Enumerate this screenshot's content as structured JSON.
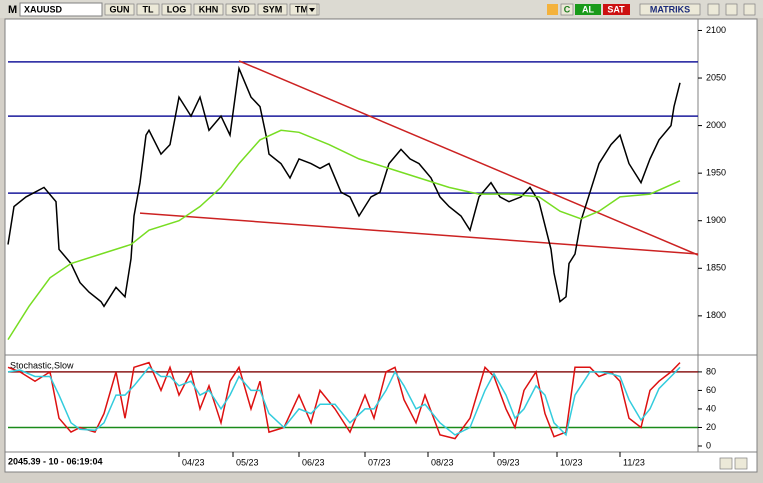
{
  "toolbar": {
    "logo": "M",
    "symbol": "XAUUSD",
    "buttons": [
      "GUN",
      "TL",
      "LOG",
      "KHN",
      "SVD",
      "SYM",
      "TMP"
    ],
    "c": "C",
    "buy": "AL",
    "sell": "SAT",
    "brand": "MATRIKS"
  },
  "status": "2045.39 - 10 - 06:19:04",
  "chart_data": [
    {
      "type": "line",
      "xlim": [
        0,
        230
      ],
      "ylim": [
        1762,
        2111
      ],
      "yticks": [
        1800,
        1850,
        1900,
        1950,
        2000,
        2050,
        2100
      ],
      "series": [
        {
          "color": "#000000",
          "x": [
            0,
            2,
            6,
            9,
            12,
            16,
            17,
            21,
            24,
            27,
            31,
            32,
            36,
            39,
            41,
            42,
            44,
            46,
            47,
            51,
            54,
            57,
            61,
            64,
            67,
            71,
            74,
            77,
            81,
            84,
            86,
            87,
            91,
            94,
            97,
            101,
            104,
            107,
            111,
            114,
            117,
            121,
            124,
            127,
            131,
            134,
            137,
            141,
            144,
            147,
            151,
            154,
            157,
            161,
            164,
            167,
            171,
            174,
            177,
            181,
            182,
            184,
            186,
            187,
            189,
            191,
            194,
            197,
            201,
            204,
            207,
            211,
            214,
            217,
            221,
            222,
            224
          ],
          "values": [
            1875,
            1915,
            1925,
            1930,
            1935,
            1920,
            1870,
            1855,
            1835,
            1825,
            1815,
            1810,
            1830,
            1820,
            1860,
            1905,
            1940,
            1990,
            1995,
            1970,
            1980,
            2030,
            2010,
            2030,
            1995,
            2010,
            1990,
            2060,
            2030,
            2020,
            1990,
            1970,
            1960,
            1945,
            1965,
            1960,
            1955,
            1960,
            1930,
            1925,
            1905,
            1925,
            1930,
            1960,
            1975,
            1965,
            1960,
            1945,
            1925,
            1915,
            1905,
            1890,
            1925,
            1940,
            1925,
            1920,
            1925,
            1935,
            1920,
            1870,
            1845,
            1815,
            1820,
            1855,
            1865,
            1900,
            1930,
            1960,
            1980,
            1990,
            1960,
            1940,
            1965,
            1985,
            2000,
            2020,
            2045
          ]
        },
        {
          "color": "#77dd22",
          "x": [
            0,
            7,
            14,
            21,
            31,
            41,
            47,
            57,
            64,
            71,
            77,
            84,
            91,
            97,
            107,
            117,
            127,
            137,
            147,
            157,
            167,
            177,
            184,
            191,
            197,
            204,
            214,
            224
          ],
          "values": [
            1775,
            1810,
            1840,
            1855,
            1865,
            1875,
            1890,
            1900,
            1915,
            1935,
            1960,
            1985,
            1995,
            1993,
            1980,
            1965,
            1955,
            1945,
            1935,
            1928,
            1928,
            1925,
            1910,
            1902,
            1910,
            1925,
            1928,
            1942
          ]
        }
      ],
      "hlines": [
        {
          "value": 2067,
          "color": "#1a1a9c"
        },
        {
          "value": 2010,
          "color": "#1a1a9c"
        },
        {
          "value": 1929,
          "color": "#1a1a9c"
        }
      ],
      "trendlines": [
        {
          "color": "#cc2222",
          "x": [
            77,
            230
          ],
          "values": [
            2068,
            1864
          ]
        },
        {
          "color": "#cc2222",
          "x": [
            44,
            230
          ],
          "values": [
            1908,
            1865
          ]
        }
      ]
    },
    {
      "type": "line",
      "title": "Stochastic,Slow",
      "xlim": [
        0,
        230
      ],
      "ylim": [
        0,
        95
      ],
      "xticks": [
        {
          "value": 57,
          "label": "04/23"
        },
        {
          "value": 75,
          "label": "05/23"
        },
        {
          "value": 97,
          "label": "06/23"
        },
        {
          "value": 119,
          "label": "07/23"
        },
        {
          "value": 140,
          "label": "08/23"
        },
        {
          "value": 162,
          "label": "09/23"
        },
        {
          "value": 183,
          "label": "10/23"
        },
        {
          "value": 204,
          "label": "11/23"
        }
      ],
      "yticks": [
        0,
        20,
        40,
        60,
        80
      ],
      "series": [
        {
          "color": "#dd1111",
          "x": [
            0,
            4,
            9,
            14,
            17,
            21,
            24,
            29,
            32,
            36,
            39,
            42,
            47,
            51,
            54,
            57,
            61,
            64,
            67,
            71,
            74,
            77,
            81,
            84,
            87,
            92,
            97,
            101,
            104,
            109,
            114,
            119,
            122,
            126,
            129,
            132,
            136,
            139,
            144,
            149,
            154,
            159,
            162,
            166,
            169,
            172,
            176,
            179,
            182,
            186,
            189,
            194,
            197,
            201,
            204,
            207,
            211,
            214,
            217,
            221,
            224
          ],
          "values": [
            85,
            80,
            70,
            80,
            30,
            15,
            20,
            15,
            35,
            80,
            30,
            85,
            90,
            60,
            85,
            55,
            80,
            40,
            65,
            25,
            70,
            85,
            40,
            70,
            15,
            20,
            55,
            25,
            60,
            40,
            15,
            55,
            30,
            80,
            85,
            50,
            25,
            55,
            12,
            8,
            30,
            85,
            75,
            40,
            20,
            60,
            80,
            35,
            10,
            15,
            85,
            85,
            75,
            80,
            70,
            30,
            20,
            60,
            70,
            80,
            90
          ]
        },
        {
          "color": "#33ccdd",
          "x": [
            0,
            4,
            9,
            14,
            17,
            21,
            24,
            29,
            32,
            36,
            39,
            42,
            47,
            51,
            54,
            57,
            61,
            64,
            67,
            71,
            74,
            77,
            81,
            84,
            87,
            92,
            97,
            101,
            104,
            109,
            114,
            119,
            122,
            126,
            129,
            132,
            136,
            139,
            144,
            149,
            154,
            159,
            162,
            166,
            169,
            172,
            176,
            179,
            182,
            186,
            189,
            194,
            197,
            201,
            204,
            207,
            211,
            214,
            217,
            221,
            224
          ],
          "values": [
            80,
            82,
            75,
            75,
            55,
            25,
            18,
            17,
            25,
            55,
            55,
            65,
            85,
            75,
            75,
            65,
            70,
            55,
            60,
            40,
            55,
            75,
            60,
            60,
            35,
            20,
            40,
            35,
            45,
            45,
            25,
            40,
            40,
            60,
            80,
            65,
            40,
            45,
            25,
            12,
            20,
            60,
            78,
            55,
            30,
            40,
            65,
            55,
            25,
            12,
            55,
            80,
            80,
            78,
            75,
            50,
            28,
            40,
            62,
            75,
            85
          ]
        }
      ],
      "hlines": [
        {
          "value": 80,
          "color": "#8b1a1a"
        },
        {
          "value": 20,
          "color": "#1a8b1a"
        }
      ]
    }
  ]
}
